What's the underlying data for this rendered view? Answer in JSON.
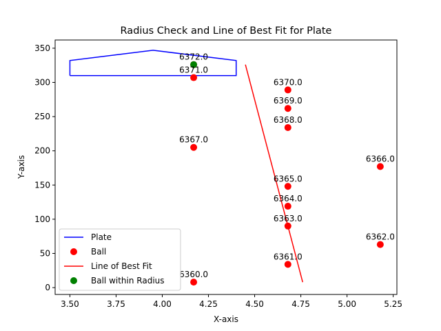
{
  "chart_data": {
    "type": "scatter",
    "title": "Radius Check and Line of Best Fit for Plate",
    "xlabel": "X-axis",
    "ylabel": "Y-axis",
    "xlim": [
      3.42,
      5.27
    ],
    "ylim": [
      -10,
      362
    ],
    "xticks": [
      3.5,
      3.75,
      4.0,
      4.25,
      4.5,
      4.75,
      5.0,
      5.25
    ],
    "xtick_labels": [
      "3.50",
      "3.75",
      "4.00",
      "4.25",
      "4.50",
      "4.75",
      "5.00",
      "5.25"
    ],
    "yticks": [
      0,
      50,
      100,
      150,
      200,
      250,
      300,
      350
    ],
    "ytick_labels": [
      "0",
      "50",
      "100",
      "150",
      "200",
      "250",
      "300",
      "350"
    ],
    "grid": false,
    "legend_position": "lower-left",
    "colors": {
      "plate": "#0000ff",
      "ball": "#ff0000",
      "fit": "#ff0000",
      "within": "#008000"
    },
    "plate": {
      "name": "Plate",
      "x": [
        3.5,
        3.5,
        3.95,
        4.4,
        4.4,
        3.5
      ],
      "y": [
        310,
        332,
        347,
        332,
        310,
        310
      ]
    },
    "balls": {
      "name": "Ball",
      "points": [
        {
          "x": 4.17,
          "y": 8,
          "label": "6360.0"
        },
        {
          "x": 4.68,
          "y": 34,
          "label": "6361.0"
        },
        {
          "x": 5.18,
          "y": 63,
          "label": "6362.0"
        },
        {
          "x": 4.68,
          "y": 90,
          "label": "6363.0"
        },
        {
          "x": 4.68,
          "y": 119,
          "label": "6364.0"
        },
        {
          "x": 4.68,
          "y": 148,
          "label": "6365.0"
        },
        {
          "x": 5.18,
          "y": 177,
          "label": "6366.0"
        },
        {
          "x": 4.17,
          "y": 205,
          "label": "6367.0"
        },
        {
          "x": 4.68,
          "y": 234,
          "label": "6368.0"
        },
        {
          "x": 4.68,
          "y": 262,
          "label": "6369.0"
        },
        {
          "x": 4.68,
          "y": 289,
          "label": "6370.0"
        },
        {
          "x": 4.17,
          "y": 307,
          "label": "6371.0"
        },
        {
          "x": 4.17,
          "y": 326,
          "label": "6372.0"
        }
      ]
    },
    "best_fit": {
      "name": "Line of Best Fit",
      "x": [
        4.45,
        4.76
      ],
      "y": [
        326,
        8
      ]
    },
    "within_radius": {
      "name": "Ball within Radius",
      "points": [
        {
          "x": 4.17,
          "y": 326
        }
      ]
    }
  }
}
